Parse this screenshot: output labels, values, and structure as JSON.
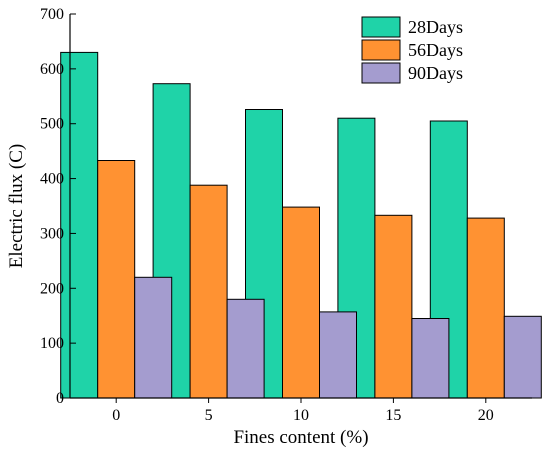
{
  "chart_data": {
    "type": "bar",
    "title": "",
    "xlabel": "Fines content (%)",
    "ylabel": "Electric flux (C)",
    "categories": [
      "0",
      "5",
      "10",
      "15",
      "20"
    ],
    "series": [
      {
        "name": "28Days",
        "values": [
          630,
          573,
          526,
          510,
          505
        ],
        "color": "#1fd3a8"
      },
      {
        "name": "56Days",
        "values": [
          433,
          388,
          348,
          333,
          328
        ],
        "color": "#ff9232"
      },
      {
        "name": "90Days",
        "values": [
          220,
          180,
          157,
          145,
          149
        ],
        "color": "#a49ccf"
      }
    ],
    "ylim": [
      0,
      700
    ],
    "yticks": [
      "0",
      "100",
      "200",
      "300",
      "400",
      "500",
      "600",
      "700"
    ],
    "grid": false,
    "legend_position": "top-right"
  }
}
